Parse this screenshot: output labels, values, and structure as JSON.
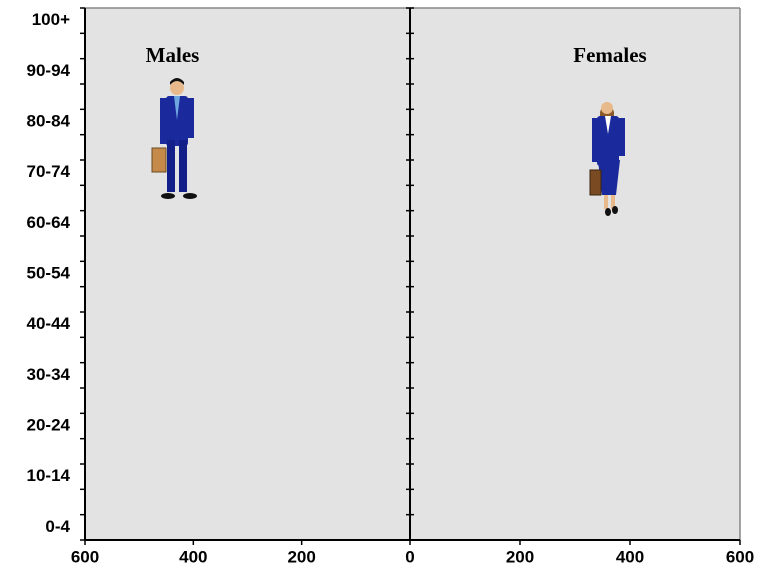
{
  "chart_data": {
    "type": "pyramid",
    "categories": [
      "0-4",
      null,
      "10-14",
      null,
      "20-24",
      null,
      "30-34",
      null,
      "40-44",
      null,
      "50-54",
      null,
      "60-64",
      null,
      "70-74",
      null,
      "80-84",
      null,
      "90-94",
      null,
      "100+"
    ],
    "panels": [
      {
        "title": "Males",
        "xlim": [
          600,
          0
        ],
        "xticks": [
          600,
          400,
          200,
          0
        ]
      },
      {
        "title": "Females",
        "xlim": [
          0,
          600
        ],
        "xticks": [
          0,
          200,
          400,
          600
        ]
      }
    ],
    "background": "#e3e3e3"
  }
}
